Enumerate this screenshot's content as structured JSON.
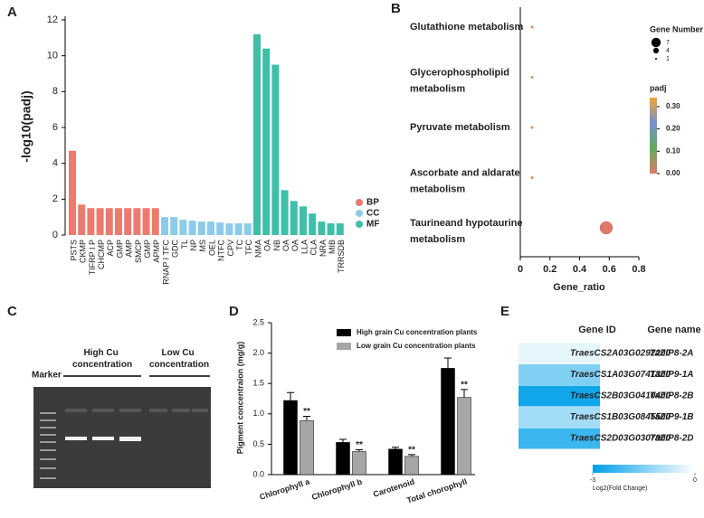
{
  "chart_data": [
    {
      "type": "bar",
      "label": "A",
      "ylabel": "-log10(padj)",
      "ylim": [
        0,
        12
      ],
      "yticks": [
        0,
        2,
        4,
        6,
        8,
        10,
        12
      ],
      "series": [
        {
          "name": "BP",
          "color": "#ec7b6f",
          "categories": [
            "PSTS",
            "CKMP",
            "TIFRP I P",
            "CHCMP",
            "ACP",
            "GMP",
            "AMP",
            "SMCP",
            "GMP",
            "APMP"
          ],
          "values": [
            4.7,
            1.7,
            1.5,
            1.5,
            1.5,
            1.5,
            1.5,
            1.5,
            1.5,
            1.5
          ]
        },
        {
          "name": "CC",
          "color": "#8ccbea",
          "categories": [
            "RNAP I TFC",
            "GDC",
            "TL",
            "NP",
            "MS",
            "OEL",
            "NTFC",
            "CPV",
            "TC",
            "TFC"
          ],
          "values": [
            1.0,
            1.0,
            0.85,
            0.8,
            0.75,
            0.75,
            0.7,
            0.65,
            0.65,
            0.65
          ]
        },
        {
          "name": "MF",
          "color": "#3fbfa8",
          "categories": [
            "NMA",
            "OA",
            "NB",
            "OA",
            "OA",
            "LLA",
            "CLA",
            "NRA",
            "MIB",
            "TRRSDB"
          ],
          "values": [
            11.2,
            10.4,
            9.5,
            2.5,
            1.9,
            1.6,
            1.2,
            0.75,
            0.65,
            0.65
          ]
        }
      ]
    },
    {
      "type": "bubble",
      "label": "B",
      "xlabel": "Gene_ratio",
      "categories": [
        "Glutathione metabolism",
        "Glycerophospholipid metabolism",
        "Pyruvate metabolism",
        "Ascorbate and aldarate metabolism",
        "Taurineand hypotaurine metabolism"
      ],
      "values": [
        0.08,
        0.08,
        0.08,
        0.08,
        0.58
      ],
      "sizes": [
        1,
        1,
        1,
        1,
        7
      ],
      "padj": [
        0.33,
        0.33,
        0.33,
        0.33,
        0.0
      ],
      "xlim": [
        0,
        0.8
      ],
      "xticks": [
        0,
        0.2,
        0.4,
        0.6,
        0.8
      ],
      "size_title": "Gene Number",
      "size_legend": [
        7,
        4,
        1
      ],
      "color_title": "padj",
      "colorbar_lim": [
        0,
        0.34
      ],
      "colorbar_colors": [
        "#e07a6a",
        "#5fad5a",
        "#7b90d4",
        "#f2a72e"
      ],
      "colorbar_ticks": [
        {
          "value": 0.3,
          "label": "0.30"
        },
        {
          "value": 0.2,
          "label": "0.20"
        },
        {
          "value": 0.1,
          "label": "0.10"
        },
        {
          "value": 0,
          "label": "0.00"
        }
      ]
    },
    {
      "type": "gel",
      "label": "C",
      "marker": "Marker",
      "groups": [
        "High Cu concentration",
        "Low Cu concentration"
      ]
    },
    {
      "type": "bar_error",
      "label": "D",
      "ylabel": "Pigment concentraion (mg/g)",
      "categories": [
        "Chlorophyll a",
        "Chlorophyll b",
        "Carotenoid",
        "Total chorophyll"
      ],
      "ylim": [
        0,
        2.5
      ],
      "yticks": [
        {
          "value": 0,
          "label": "0.0"
        },
        {
          "value": 0.5,
          "label": "0.5"
        },
        {
          "value": 1,
          "label": "1.0"
        },
        {
          "value": 1.5,
          "label": "1.5"
        },
        {
          "value": 2,
          "label": "2.0"
        },
        {
          "value": 2.5,
          "label": "2.5"
        }
      ],
      "series": [
        {
          "name": "High grain Cu concentration plants",
          "color": "#000000",
          "values": [
            1.22,
            0.53,
            0.42,
            1.75
          ],
          "errors": [
            0.13,
            0.05,
            0.03,
            0.17
          ]
        },
        {
          "name": "Low grain Cu concentration plants",
          "color": "#a6a6a6",
          "values": [
            0.89,
            0.38,
            0.3,
            1.27
          ],
          "errors": [
            0.07,
            0.03,
            0.03,
            0.13
          ],
          "significance": [
            "**",
            "**",
            "**",
            "**"
          ]
        }
      ]
    },
    {
      "type": "heatmap",
      "label": "E",
      "headers": [
        "Gene ID",
        "Gene name"
      ],
      "gene_ids": [
        "TraesCS2A03G0292200",
        "TraesCS1A03G0741300",
        "TraesCS2B03G0410400",
        "TraesCS1B03G0845500",
        "TraesCS2D03G0307900"
      ],
      "gene_names": [
        "TaZIP8-2A",
        "TaZIP9-1A",
        "TaZIP8-2B",
        "TaZIP9-1B",
        "TaZIP8-2D"
      ],
      "values": [
        -0.3,
        -1.5,
        -2.8,
        -1.1,
        -2.3
      ],
      "clim": [
        -3,
        0
      ],
      "cticks": [
        -3,
        0
      ],
      "cmap": [
        "#00a0e9",
        "#ffffff"
      ],
      "colorbar_title": "Log2(Fold Change)"
    }
  ]
}
